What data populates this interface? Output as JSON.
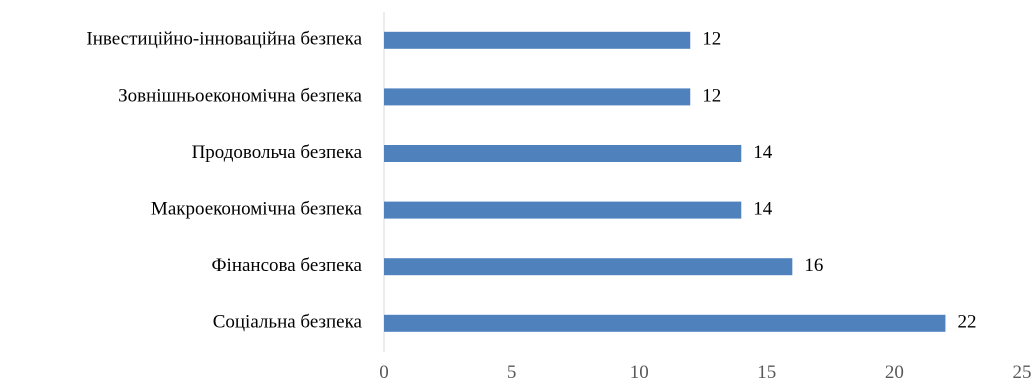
{
  "chart_data": {
    "type": "bar",
    "orientation": "horizontal",
    "categories": [
      "Інвестиційно-інноваційна безпека",
      "Зовнішньоекономічна безпека",
      "Продовольча безпека",
      "Макроекономічна безпека",
      "Фінансова безпека",
      "Соціальна безпека"
    ],
    "values": [
      12,
      12,
      14,
      14,
      16,
      22
    ],
    "value_labels": [
      "12",
      "12",
      "14",
      "14",
      "16",
      "22"
    ],
    "xlim": [
      0,
      25
    ],
    "x_ticks": [
      0,
      5,
      10,
      15,
      20,
      25
    ],
    "x_tick_labels": [
      "0",
      "5",
      "10",
      "15",
      "20",
      "25"
    ],
    "grid": false,
    "legend": "none",
    "bar_color": "#4f81bd"
  }
}
